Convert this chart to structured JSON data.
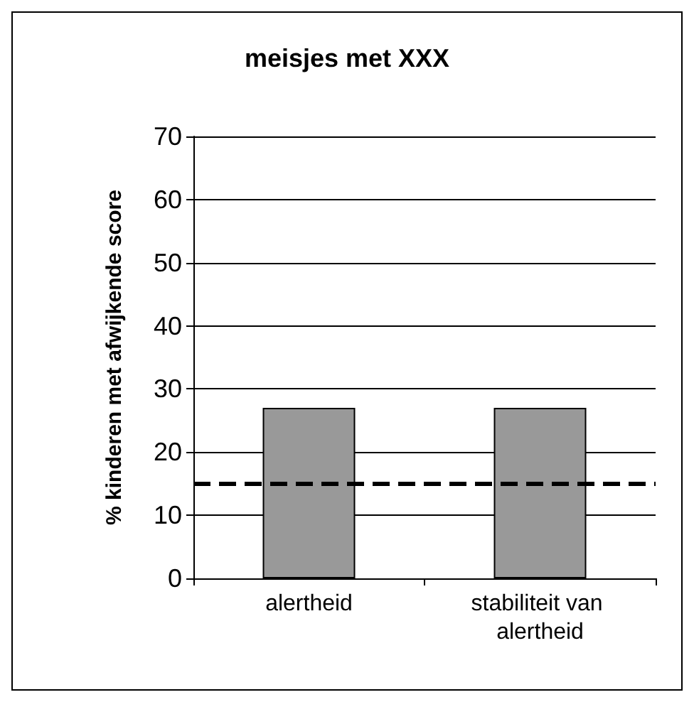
{
  "chart_data": {
    "type": "bar",
    "title": "meisjes met XXX",
    "ylabel": "% kinderen met afwijkende score",
    "categories": [
      "alertheid",
      "stabiliteit van alertheid"
    ],
    "values": [
      27,
      27
    ],
    "color": "#999999",
    "ylim": [
      0,
      70
    ],
    "yticks": [
      0,
      10,
      20,
      30,
      40,
      50,
      60,
      70
    ],
    "grid": "y",
    "ref_lines": [
      {
        "axis": "y",
        "value": 15,
        "label": null,
        "color": "#000000",
        "line_style": "dashed"
      }
    ]
  }
}
